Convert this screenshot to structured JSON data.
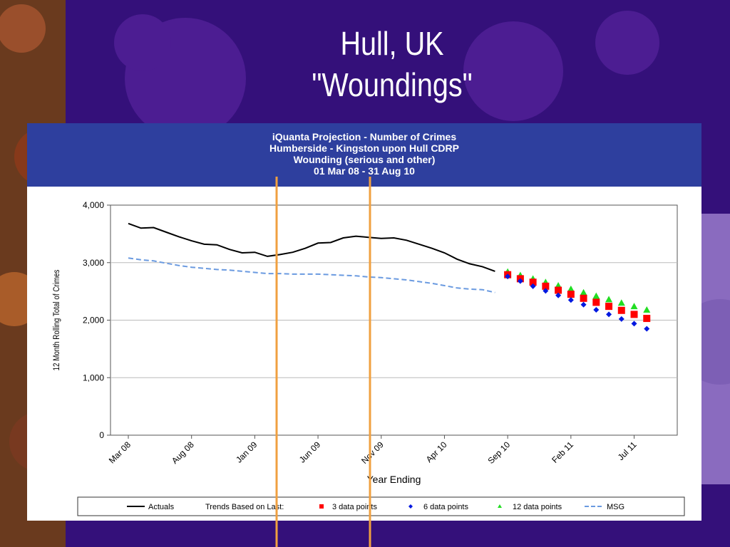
{
  "slide": {
    "title_line1": "Hull, UK",
    "title_line2": "\"Woundings\""
  },
  "colors": {
    "background": "#34107a",
    "header": "#2e3f9e",
    "actuals": "#000000",
    "msg": "#6a9ae0",
    "three_point": "#ff0000",
    "six_point": "#0018e0",
    "twelve_point": "#22dd22",
    "marker_line": "#f0a040"
  },
  "chart_data": {
    "type": "line",
    "title": [
      "iQuanta Projection - Number of Crimes",
      "Humberside - Kingston upon Hull CDRP",
      "Wounding (serious and other)",
      "01 Mar 08 - 31 Aug 10"
    ],
    "xlabel": "Year Ending",
    "ylabel": "12 Month Rolling Total of Crimes",
    "ylim": [
      0,
      4000
    ],
    "yticks": [
      0,
      1000,
      2000,
      3000,
      4000
    ],
    "ytick_labels": [
      "0",
      "1,000",
      "2,000",
      "3,000",
      "4,000"
    ],
    "x_range": [
      0,
      42
    ],
    "xtick_positions": [
      0,
      5,
      10,
      15,
      20,
      25,
      30,
      35,
      40
    ],
    "xtick_labels": [
      "Mar 08",
      "Aug 08",
      "Jan 09",
      "Jun 09",
      "Nov 09",
      "Apr 10",
      "Sep 10",
      "Feb 11",
      "Jul 11"
    ],
    "grid": "horizontal",
    "legend_prefix": "Trends Based on Last:",
    "series": [
      {
        "name": "Actuals",
        "style": "solid-line",
        "x": [
          0,
          1,
          2,
          3,
          4,
          5,
          6,
          7,
          8,
          9,
          10,
          11,
          12,
          13,
          14,
          15,
          16,
          17,
          18,
          19,
          20,
          21,
          22,
          23,
          24,
          25,
          26,
          27,
          28,
          29
        ],
        "values": [
          3680,
          3600,
          3610,
          3530,
          3450,
          3380,
          3320,
          3310,
          3230,
          3170,
          3180,
          3110,
          3140,
          3180,
          3250,
          3340,
          3350,
          3430,
          3460,
          3440,
          3420,
          3430,
          3390,
          3320,
          3250,
          3170,
          3060,
          2980,
          2930,
          2850
        ]
      },
      {
        "name": "MSG",
        "style": "dashed-line",
        "x": [
          0,
          1,
          2,
          3,
          4,
          5,
          6,
          7,
          8,
          9,
          10,
          11,
          12,
          13,
          14,
          15,
          16,
          17,
          18,
          19,
          20,
          21,
          22,
          23,
          24,
          25,
          26,
          27,
          28,
          29
        ],
        "values": [
          3080,
          3050,
          3030,
          2990,
          2950,
          2920,
          2900,
          2880,
          2870,
          2850,
          2830,
          2810,
          2810,
          2800,
          2800,
          2800,
          2790,
          2780,
          2770,
          2750,
          2740,
          2720,
          2700,
          2670,
          2640,
          2600,
          2560,
          2540,
          2530,
          2480
        ]
      },
      {
        "name": "3 data points",
        "style": "square",
        "x": [
          30,
          31,
          32,
          33,
          34,
          35,
          36,
          37,
          38,
          39,
          40,
          41
        ],
        "values": [
          2790,
          2720,
          2660,
          2590,
          2520,
          2450,
          2380,
          2310,
          2240,
          2170,
          2100,
          2030
        ]
      },
      {
        "name": "6 data points",
        "style": "diamond",
        "x": [
          30,
          31,
          32,
          33,
          34,
          35,
          36,
          37,
          38,
          39,
          40,
          41
        ],
        "values": [
          2760,
          2680,
          2590,
          2510,
          2430,
          2350,
          2270,
          2180,
          2100,
          2020,
          1940,
          1850
        ]
      },
      {
        "name": "12 data points",
        "style": "triangle",
        "x": [
          30,
          31,
          32,
          33,
          34,
          35,
          36,
          37,
          38,
          39,
          40,
          41
        ],
        "values": [
          2840,
          2780,
          2720,
          2660,
          2600,
          2540,
          2480,
          2420,
          2360,
          2300,
          2240,
          2180
        ]
      }
    ]
  }
}
